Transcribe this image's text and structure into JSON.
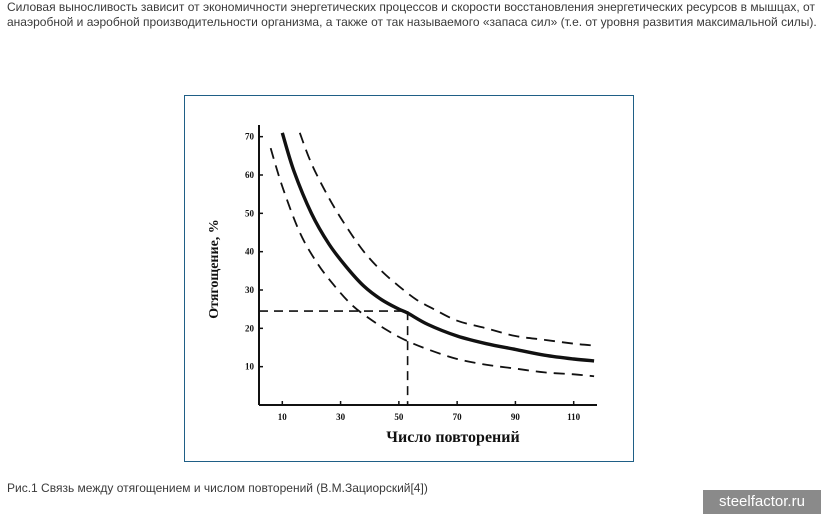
{
  "article": {
    "intro_text": "Силовая выносливость зависит от экономичности энергетических процессов и скорости восстановления энергетических ресурсов в мышцах, от анаэробной и аэробной производительности организма, а также от так называемого «запаса сил» (т.е. от уровня развития максимальной силы).",
    "caption": "Рис.1 Связь между отягощением и числом повторений (В.М.Зациорский[4])"
  },
  "watermark": "steelfactor.ru",
  "chart_data": {
    "type": "line",
    "title": "",
    "xlabel": "Число повторений",
    "ylabel": "Отягощение, %",
    "xlim": [
      2,
      118
    ],
    "ylim": [
      0,
      72
    ],
    "x_ticks": [
      10,
      30,
      50,
      70,
      90,
      110
    ],
    "y_ticks": [
      10,
      20,
      30,
      40,
      50,
      60,
      70
    ],
    "grid": false,
    "series": [
      {
        "style": "solid",
        "x": [
          10,
          14,
          20,
          26,
          32,
          38,
          44,
          50,
          53,
          60,
          70,
          80,
          90,
          100,
          110,
          117
        ],
        "y": [
          71,
          61,
          50,
          42,
          36,
          31,
          27.5,
          25,
          24,
          21,
          18,
          16,
          14.5,
          13,
          12,
          11.5
        ]
      },
      {
        "style": "dashed",
        "x": [
          16,
          20,
          26,
          32,
          38,
          44,
          50,
          56,
          62,
          70,
          80,
          90,
          100,
          110,
          117
        ],
        "y": [
          71,
          63,
          54,
          46.5,
          40,
          35,
          31,
          27.5,
          25,
          22,
          20,
          18,
          17,
          16,
          15.5
        ]
      },
      {
        "style": "dashed",
        "x": [
          6,
          10,
          16,
          22,
          28,
          34,
          40,
          46,
          52,
          60,
          70,
          80,
          90,
          100,
          110,
          117
        ],
        "y": [
          67,
          57,
          45,
          37,
          31,
          26,
          22.5,
          19.5,
          17,
          14.5,
          12,
          10.5,
          9.5,
          8.5,
          8,
          7.5
        ]
      }
    ],
    "reference_lines": {
      "x": 53,
      "y": 24.5
    }
  }
}
